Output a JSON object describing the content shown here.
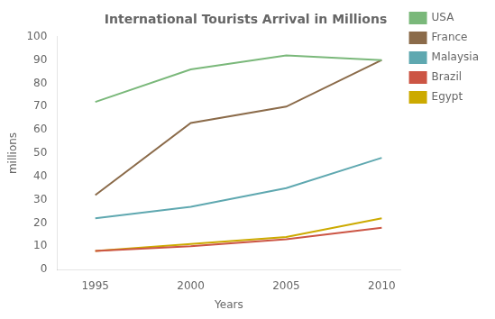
{
  "chart_data": {
    "type": "line",
    "title": "International Tourists Arrival in Millions",
    "xlabel": "Years",
    "ylabel": "millions",
    "x": [
      1995,
      2000,
      2005,
      2010
    ],
    "series": [
      {
        "name": "USA",
        "color": "#7ab87a",
        "values": [
          72,
          86,
          92,
          90
        ]
      },
      {
        "name": "France",
        "color": "#8B6B4A",
        "values": [
          32,
          63,
          70,
          90
        ]
      },
      {
        "name": "Malaysia",
        "color": "#5fa8b0",
        "values": [
          22,
          27,
          35,
          48
        ]
      },
      {
        "name": "Brazil",
        "color": "#cc5544",
        "values": [
          8,
          10,
          13,
          18
        ]
      },
      {
        "name": "Egypt",
        "color": "#ccaa00",
        "values": [
          8,
          11,
          14,
          22
        ]
      }
    ],
    "xlim": [
      1993,
      2011
    ],
    "xticks": [
      1995,
      2000,
      2005,
      2010
    ],
    "ylim": [
      0,
      100
    ],
    "yticks": [
      0,
      10,
      20,
      30,
      40,
      50,
      60,
      70,
      80,
      90,
      100
    ],
    "grid": false,
    "legend": "right"
  }
}
